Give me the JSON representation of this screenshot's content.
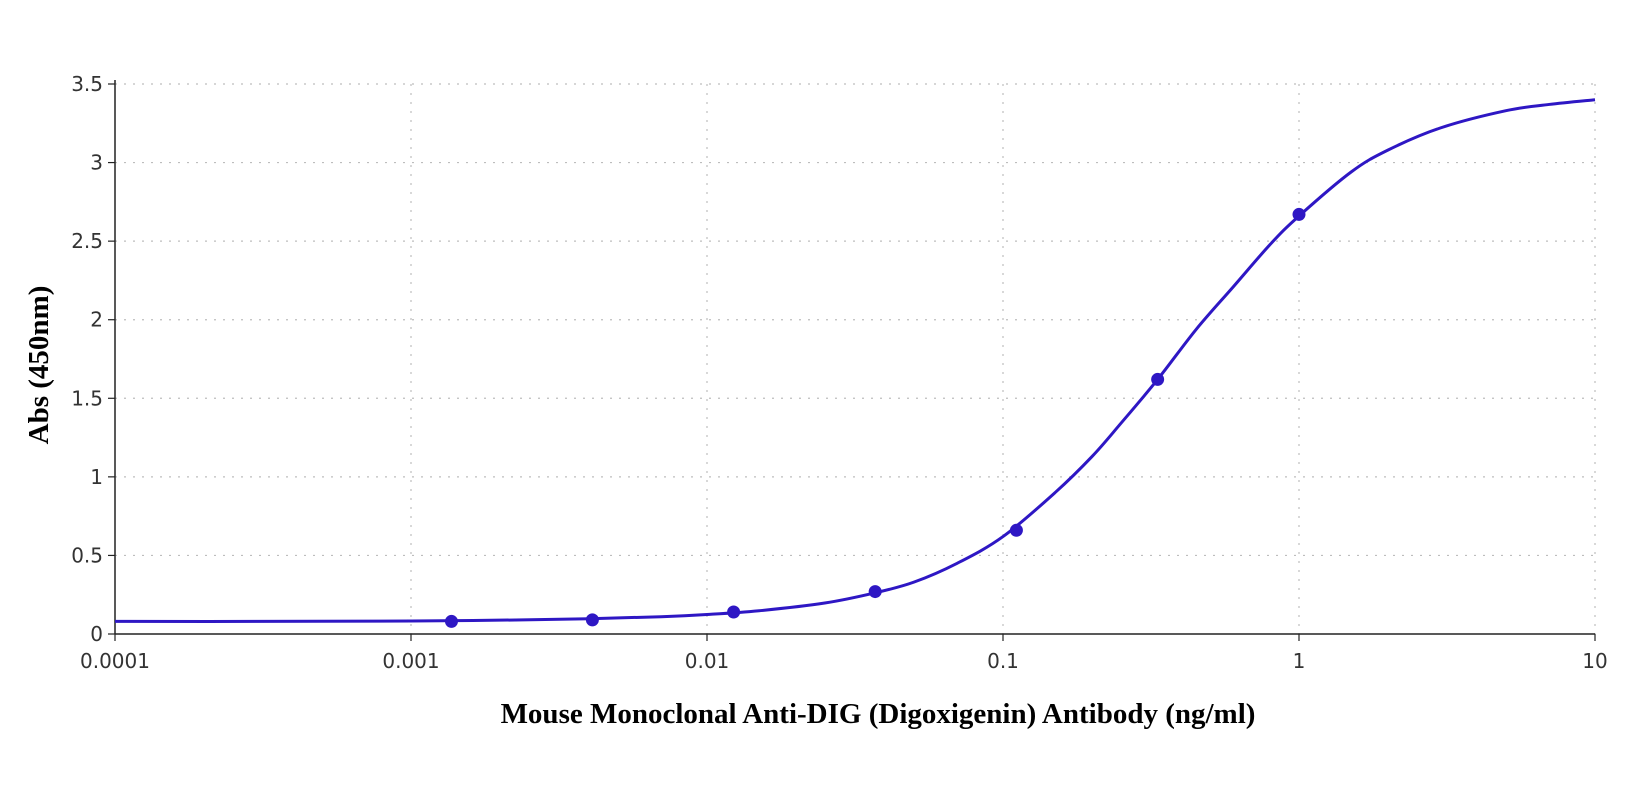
{
  "chart_data": {
    "type": "scatter",
    "title": "",
    "xlabel": "Mouse Monoclonal Anti-DIG (Digoxigenin) Antibody (ng/ml)",
    "ylabel": "Abs (450nm)",
    "x_scale": "log",
    "xlim": [
      0.0001,
      10
    ],
    "ylim": [
      0,
      3.5
    ],
    "x_ticks": [
      "0.0001",
      "0.001",
      "0.01",
      "0.1",
      "1",
      "10"
    ],
    "y_ticks": [
      "0",
      "0.5",
      "1",
      "1.5",
      "2",
      "2.5",
      "3",
      "3.5"
    ],
    "grid": true,
    "legend": "none",
    "color": "#2e17c4",
    "series": [
      {
        "type": "scatter",
        "x": [
          0.00137,
          0.0041,
          0.0123,
          0.037,
          0.111,
          0.333,
          1.0
        ],
        "y": [
          0.08,
          0.09,
          0.14,
          0.27,
          0.66,
          1.62,
          2.67
        ]
      },
      {
        "type": "line",
        "x": [
          0.0001,
          0.0003,
          0.001,
          0.002,
          0.004,
          0.007,
          0.01,
          0.015,
          0.025,
          0.037,
          0.05,
          0.07,
          0.1,
          0.15,
          0.2,
          0.25,
          0.333,
          0.45,
          0.6,
          0.8,
          1.0,
          1.5,
          2,
          3,
          5,
          7,
          10
        ],
        "y": [
          0.08,
          0.08,
          0.083,
          0.088,
          0.097,
          0.11,
          0.124,
          0.148,
          0.197,
          0.262,
          0.33,
          0.45,
          0.62,
          0.9,
          1.13,
          1.34,
          1.62,
          1.94,
          2.21,
          2.48,
          2.66,
          2.94,
          3.08,
          3.22,
          3.33,
          3.37,
          3.4
        ]
      }
    ]
  }
}
